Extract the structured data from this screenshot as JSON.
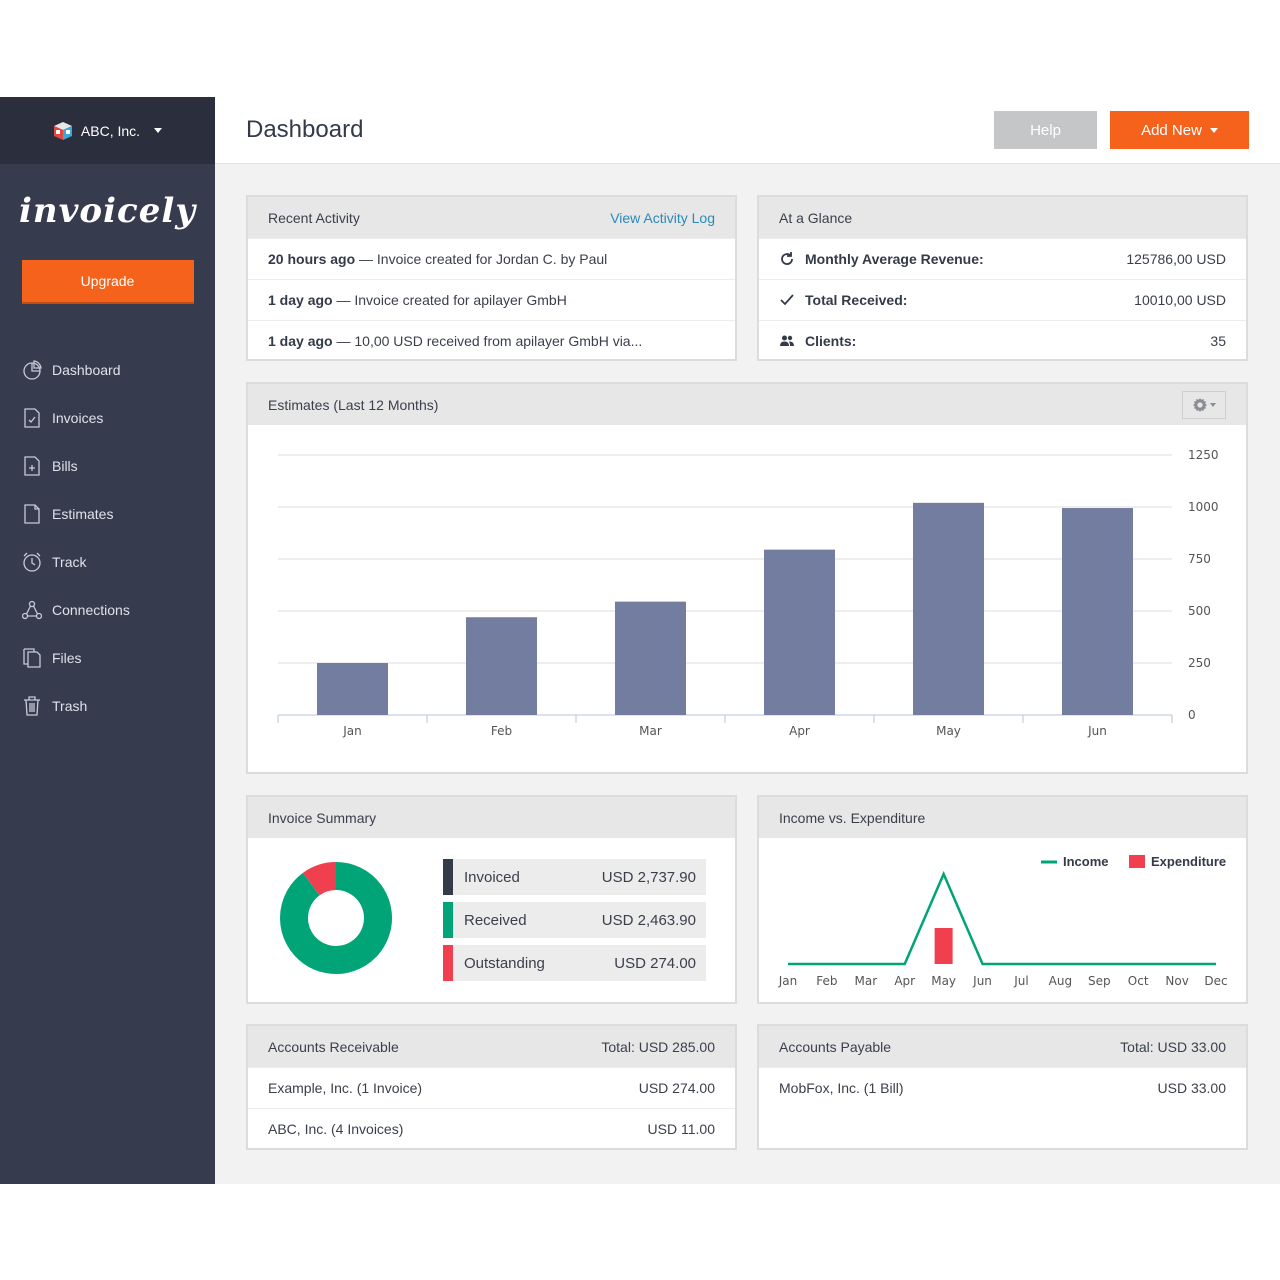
{
  "company": {
    "name": "ABC, Inc."
  },
  "logo": "invoicely",
  "upgrade_label": "Upgrade",
  "nav": [
    {
      "label": "Dashboard",
      "icon": "pie-chart-icon"
    },
    {
      "label": "Invoices",
      "icon": "invoice-icon"
    },
    {
      "label": "Bills",
      "icon": "bill-icon"
    },
    {
      "label": "Estimates",
      "icon": "estimate-icon"
    },
    {
      "label": "Track",
      "icon": "clock-icon"
    },
    {
      "label": "Connections",
      "icon": "connections-icon"
    },
    {
      "label": "Files",
      "icon": "files-icon"
    },
    {
      "label": "Trash",
      "icon": "trash-icon"
    }
  ],
  "header": {
    "title": "Dashboard",
    "help_label": "Help",
    "add_new_label": "Add New"
  },
  "recent_activity": {
    "title": "Recent Activity",
    "link": "View Activity Log",
    "items": [
      {
        "when": "20 hours ago",
        "text": " — Invoice created for Jordan C. by Paul"
      },
      {
        "when": "1 day ago",
        "text": " — Invoice created for apilayer GmbH"
      },
      {
        "when": "1 day ago",
        "text": " — 10,00 USD received from apilayer GmbH via..."
      }
    ]
  },
  "at_a_glance": {
    "title": "At a Glance",
    "items": [
      {
        "label": "Monthly Average Revenue:",
        "value": "125786,00 USD",
        "icon": "refresh-icon"
      },
      {
        "label": "Total Received:",
        "value": "10010,00 USD",
        "icon": "check-icon"
      },
      {
        "label": "Clients:",
        "value": "35",
        "icon": "users-icon"
      }
    ]
  },
  "estimates": {
    "title": "Estimates (Last 12 Months)"
  },
  "invoice_summary": {
    "title": "Invoice Summary",
    "items": [
      {
        "label": "Invoiced",
        "value": "USD 2,737.90",
        "color": "#333a48"
      },
      {
        "label": "Received",
        "value": "USD 2,463.90",
        "color": "#00a477"
      },
      {
        "label": "Outstanding",
        "value": "USD 274.00",
        "color": "#f0404f"
      }
    ]
  },
  "income_expenditure": {
    "title": "Income vs. Expenditure",
    "legend_income": "Income",
    "legend_expenditure": "Expenditure"
  },
  "accounts_receivable": {
    "title": "Accounts Receivable",
    "total": "Total: USD 285.00",
    "items": [
      {
        "name": "Example, Inc. (1 Invoice)",
        "value": "USD 274.00"
      },
      {
        "name": "ABC, Inc. (4 Invoices)",
        "value": "USD 11.00"
      }
    ]
  },
  "accounts_payable": {
    "title": "Accounts Payable",
    "total": "Total: USD 33.00",
    "items": [
      {
        "name": "MobFox, Inc. (1 Bill)",
        "value": "USD 33.00"
      }
    ]
  },
  "colors": {
    "accent": "#f5621c",
    "sidebar": "#363b4e",
    "bar": "#737d9f",
    "green": "#00a477",
    "red": "#f0404f"
  },
  "chart_data": [
    {
      "type": "bar",
      "categories": [
        "Jan",
        "Feb",
        "Mar",
        "Apr",
        "May",
        "Jun"
      ],
      "values": [
        250,
        470,
        545,
        795,
        1020,
        995
      ],
      "ylim": [
        0,
        1250
      ],
      "yticks": [
        0,
        250,
        500,
        750,
        1000,
        1250
      ],
      "grid": true
    },
    {
      "type": "pie",
      "labels": [
        "Received",
        "Outstanding"
      ],
      "values": [
        2463.9,
        274.0
      ],
      "colors": [
        "#00a477",
        "#f0404f"
      ]
    },
    {
      "type": "line",
      "categories": [
        "Jan",
        "Feb",
        "Mar",
        "Apr",
        "May",
        "Jun",
        "Jul",
        "Aug",
        "Sep",
        "Oct",
        "Nov",
        "Dec"
      ],
      "series": [
        {
          "name": "Income",
          "values": [
            0,
            0,
            0,
            0,
            1,
            0,
            0,
            0,
            0,
            0,
            0,
            0
          ],
          "color": "#00a477"
        },
        {
          "name": "Expenditure",
          "values": [
            0,
            0,
            0,
            0,
            0.4,
            0,
            0,
            0,
            0,
            0,
            0,
            0
          ],
          "color": "#f0404f"
        }
      ],
      "legend": "top-right"
    }
  ]
}
